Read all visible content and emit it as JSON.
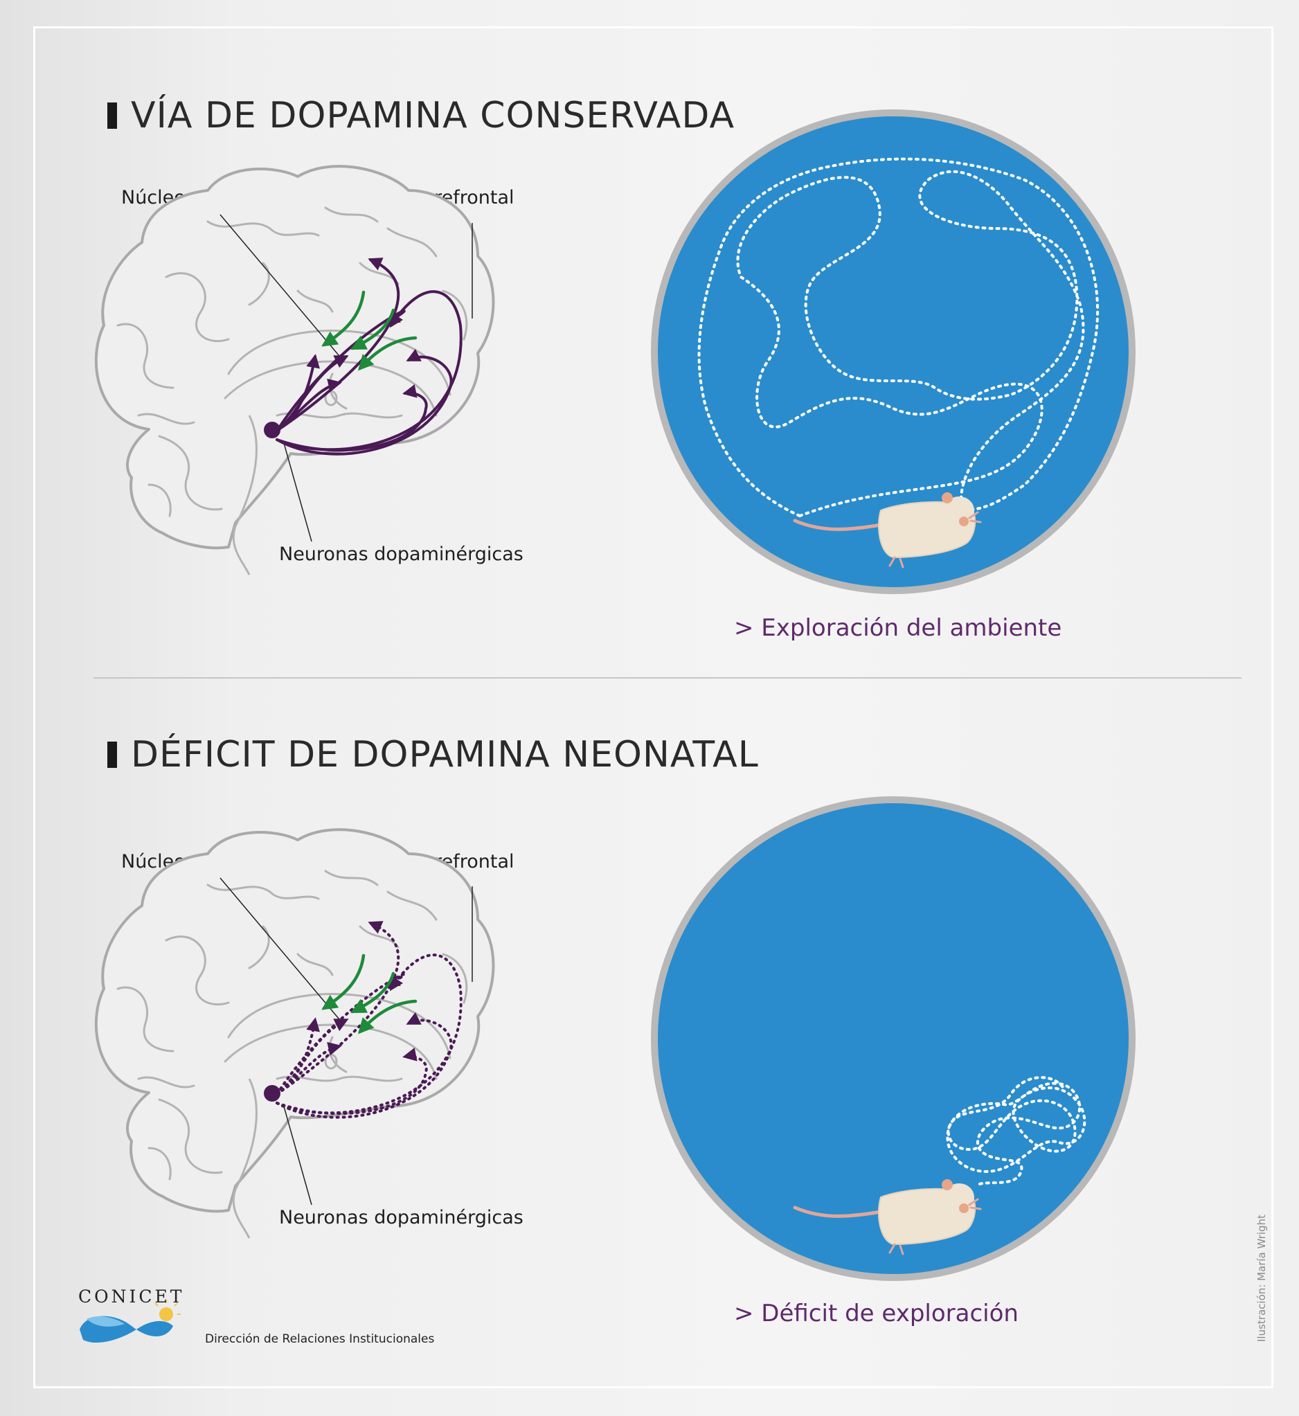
{
  "section1": {
    "title": "VÍA DE DOPAMINA CONSERVADA",
    "label_striatum": "Núcleo estriado",
    "label_cortex": "Corteza prefrontal",
    "label_neurons": "Neuronas dopaminérgicas",
    "caption": "> Exploración del ambiente"
  },
  "section2": {
    "title": "DÉFICIT DE DOPAMINA NEONATAL",
    "label_striatum": "Núcleo estriado",
    "label_cortex": "Corteza prefrontal",
    "label_neurons": "Neuronas dopaminérgicas",
    "caption": "> Déficit de exploración"
  },
  "footer": {
    "logo_text": "CONICET",
    "department": "Dirección de Relaciones Institucionales",
    "credit": "Ilustración: María Wright"
  },
  "colors": {
    "pathway_purple": "#4a1a55",
    "glutamate_green": "#1e8a3a",
    "arena_blue": "#2a8ccd",
    "arena_rim": "#b8b8b8",
    "path_dots": "#ffffff",
    "caption_text": "#5e2a6b"
  }
}
